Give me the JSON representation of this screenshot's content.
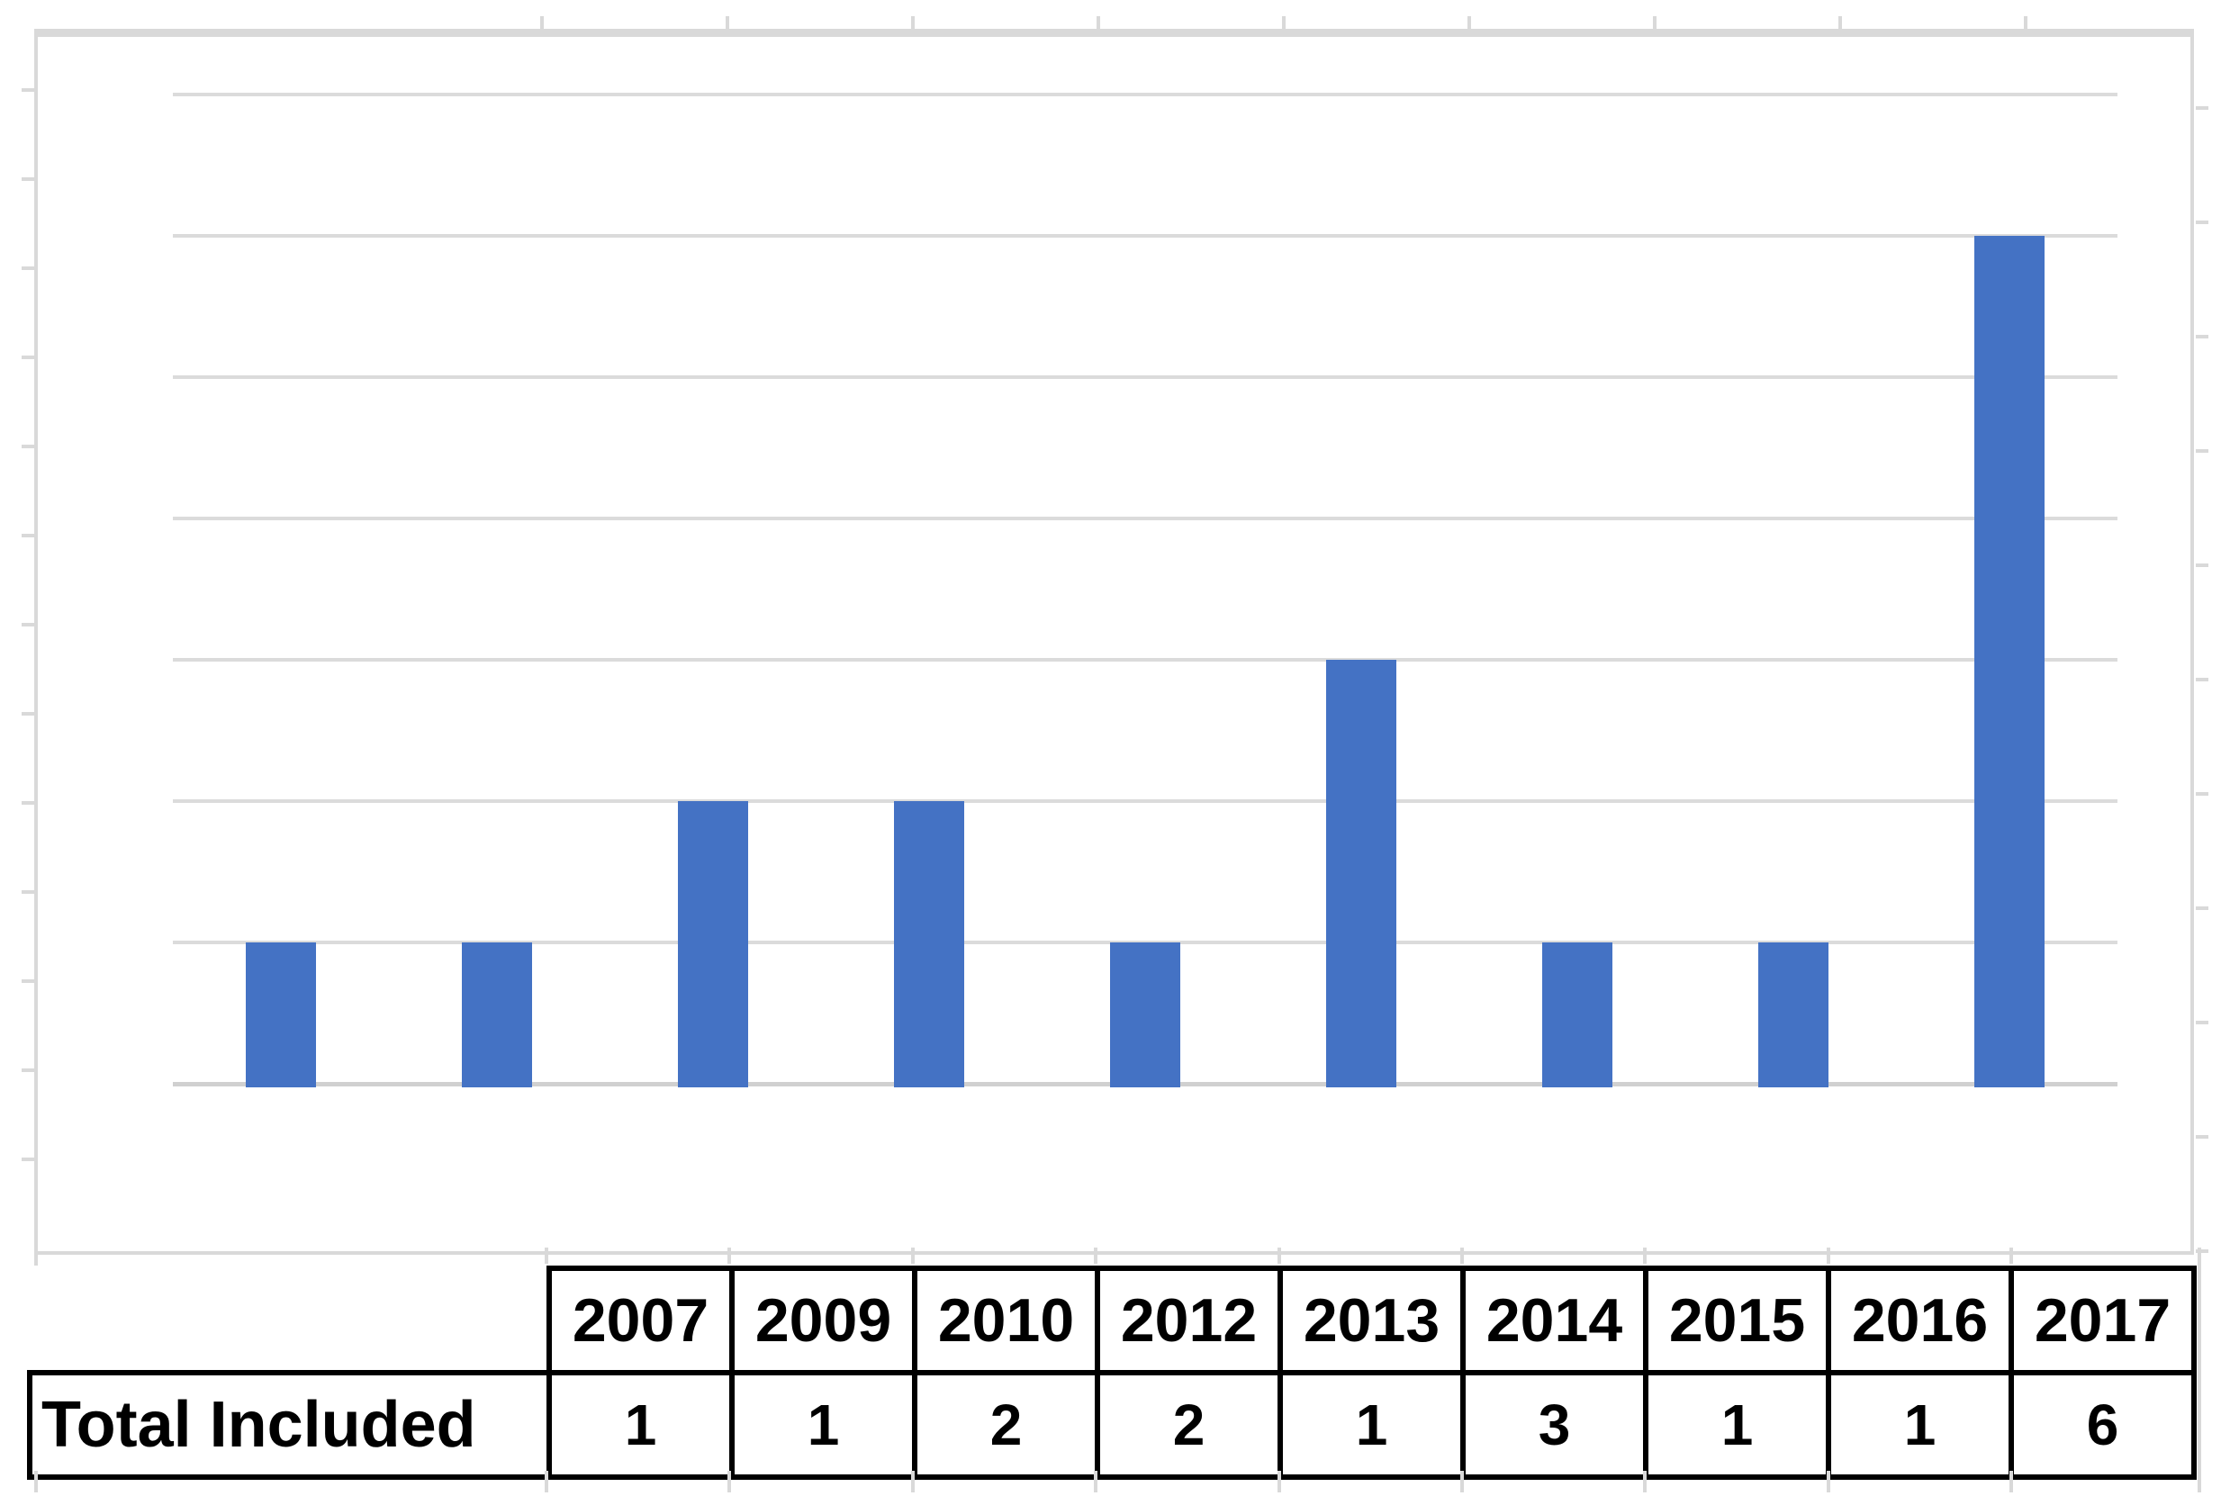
{
  "chart_data": {
    "type": "bar",
    "title": "",
    "categories": [
      "2007",
      "2009",
      "2010",
      "2012",
      "2013",
      "2014",
      "2015",
      "2016",
      "2017"
    ],
    "series": [
      {
        "name": "Total Included",
        "values": [
          1,
          1,
          2,
          2,
          1,
          3,
          1,
          1,
          6
        ]
      }
    ],
    "xlabel": "",
    "ylabel": "",
    "ylim": [
      0,
      7
    ],
    "yticks": [
      0,
      1,
      2,
      3,
      4,
      5,
      6,
      7
    ],
    "grid": true,
    "legend_position": "none",
    "bar_color": "#4472C4",
    "gridline_color": "#DBDBDB",
    "axis_line_color": "#D0D0D0",
    "frame_color": "#D9D9D9",
    "tick_label_color": "#595959"
  },
  "table": {
    "corner_label": "",
    "column_headers": [
      "2007",
      "2009",
      "2010",
      "2012",
      "2013",
      "2014",
      "2015",
      "2016",
      "2017"
    ],
    "rows": [
      {
        "label": "Total Included",
        "values": [
          "1",
          "1",
          "2",
          "2",
          "1",
          "3",
          "1",
          "1",
          "6"
        ]
      }
    ],
    "border_color": "#000000",
    "text_color": "#000000"
  }
}
